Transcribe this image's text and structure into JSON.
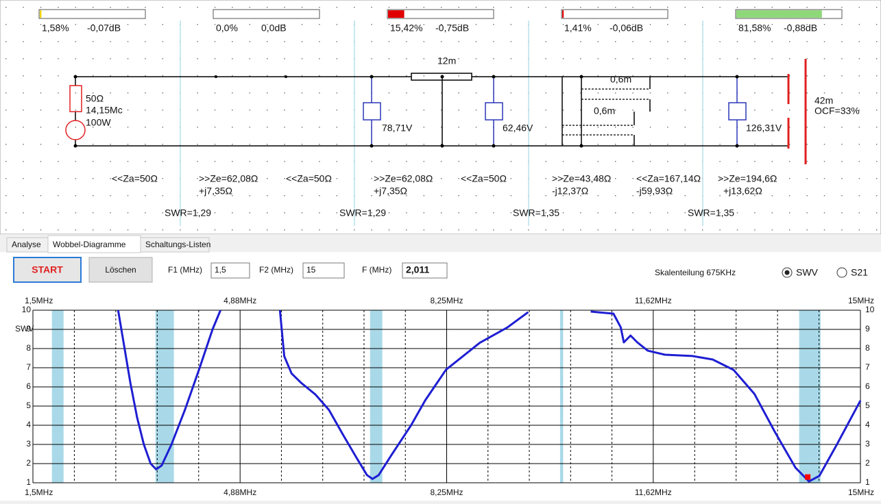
{
  "schematic": {
    "meters": [
      {
        "value": 1.58,
        "label": "1,58%",
        "db": "-0,07dB",
        "color": "#f2d400"
      },
      {
        "value": 0,
        "label": "0,0%",
        "db": "0,0dB",
        "color": "#e00000"
      },
      {
        "value": 15.42,
        "label": "15,42%",
        "db": "-0,75dB",
        "color": "#e00000"
      },
      {
        "value": 1.41,
        "label": "1,41%",
        "db": "-0,06dB",
        "color": "#e00000"
      },
      {
        "value": 81.58,
        "label": "81,58%",
        "db": "-0,88dB",
        "color": "#8fd87a"
      }
    ],
    "labels": [
      "50Ω",
      "14,15Mc",
      "100W",
      "12m",
      "78,71V",
      "62,46V",
      "0,6m",
      "0,6m",
      "126,31V",
      "42m",
      "OCF=33%",
      "<<Za=50Ω",
      ">>Ze=62,08Ω",
      "+j7,35Ω",
      "<<Za=50Ω",
      ">>Ze=62,08Ω",
      "+j7,35Ω",
      "<<Za=50Ω",
      ">>Ze=43,48Ω",
      "-j12,37Ω",
      "<<Za=167,14Ω",
      "-j59,93Ω",
      ">>Ze=194,6Ω",
      "+j13,62Ω",
      "SWR=1,29",
      "SWR=1,29",
      "SWR=1,35",
      "SWR=1,35"
    ]
  },
  "tabs": [
    "Analyse",
    "Wobbel-Diagramme",
    "Schaltungs-Listen"
  ],
  "active_tab": 1,
  "toolbar": {
    "start": "START",
    "clear": "Löschen",
    "f1_label": "F1 (MHz)",
    "f1": "1,5",
    "f2_label": "F2 (MHz)",
    "f2": "15",
    "f_label": "F (MHz)",
    "f": "2,011",
    "scale": "Skalenteilung 675KHz",
    "radio": [
      "SWV",
      "S21"
    ],
    "radio_selected": 0
  },
  "chart_data": {
    "type": "line",
    "ylabel": "SWV",
    "color": "#1e1ed2",
    "x": [
      2.89,
      2.98,
      3.09,
      3.2,
      3.31,
      3.42,
      3.51,
      3.6,
      3.76,
      3.98,
      4.21,
      4.43,
      4.56,
      null,
      5.53,
      5.6,
      5.72,
      5.88,
      6.11,
      6.33,
      6.56,
      6.78,
      6.95,
      7.04,
      7.14,
      7.34,
      7.67,
      7.9,
      8.24,
      8.79,
      9.24,
      9.58,
      null,
      10.6,
      10.97,
      11.09,
      11.14,
      11.25,
      11.36,
      11.53,
      11.81,
      12.26,
      12.59,
      12.93,
      13.27,
      13.6,
      13.94,
      14.16,
      14.33,
      14.61,
      15.0
    ],
    "values": [
      10,
      8.3,
      6.2,
      4.4,
      3.0,
      2.0,
      1.7,
      1.9,
      3.0,
      4.8,
      6.9,
      9.0,
      10,
      null,
      10,
      7.6,
      6.7,
      6.2,
      5.6,
      4.8,
      3.5,
      2.3,
      1.4,
      1.2,
      1.4,
      2.4,
      4.0,
      5.3,
      6.9,
      8.3,
      9.1,
      9.9,
      null,
      9.93,
      9.82,
      9.11,
      8.32,
      8.68,
      8.32,
      7.89,
      7.68,
      7.61,
      7.43,
      6.89,
      5.64,
      3.68,
      1.79,
      1.07,
      1.36,
      2.96,
      5.29
    ],
    "bands": [
      [
        1.81,
        2.0
      ],
      [
        3.5,
        3.8
      ],
      [
        7.0,
        7.2
      ],
      [
        10.1,
        10.15
      ],
      [
        14.0,
        14.35
      ]
    ],
    "band_color": "#a9d9e8",
    "marker": {
      "x": 14.14,
      "y": 1.3,
      "color": "#ff0000"
    },
    "xlim": [
      1.5,
      15
    ],
    "xticks": [
      {
        "value": 1.5,
        "label": "1,5MHz"
      },
      {
        "value": 4.88,
        "label": "4,88MHz"
      },
      {
        "value": 8.25,
        "label": "8,25MHz"
      },
      {
        "value": 11.62,
        "label": "11,62MHz"
      },
      {
        "value": 15,
        "label": "15MHz"
      }
    ],
    "ylim": [
      1,
      10
    ],
    "yticks": [
      1,
      2,
      3,
      4,
      5,
      6,
      7,
      8,
      9,
      10
    ],
    "grid": true
  }
}
